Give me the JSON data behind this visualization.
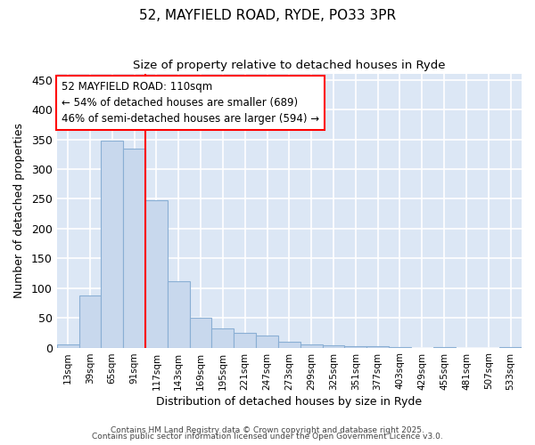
{
  "title1": "52, MAYFIELD ROAD, RYDE, PO33 3PR",
  "title2": "Size of property relative to detached houses in Ryde",
  "xlabel": "Distribution of detached houses by size in Ryde",
  "ylabel": "Number of detached properties",
  "bar_color": "#c8d8ed",
  "bar_edge_color": "#8aafd4",
  "plot_bg_color": "#dce7f5",
  "fig_bg_color": "#ffffff",
  "grid_color": "#ffffff",
  "categories": [
    "13sqm",
    "39sqm",
    "65sqm",
    "91sqm",
    "117sqm",
    "143sqm",
    "169sqm",
    "195sqm",
    "221sqm",
    "247sqm",
    "273sqm",
    "299sqm",
    "325sqm",
    "351sqm",
    "377sqm",
    "403sqm",
    "429sqm",
    "455sqm",
    "481sqm",
    "507sqm",
    "533sqm"
  ],
  "values": [
    5,
    88,
    348,
    335,
    247,
    112,
    50,
    32,
    25,
    20,
    10,
    5,
    4,
    3,
    2,
    1,
    0,
    1,
    0,
    0,
    1
  ],
  "ylim": [
    0,
    460
  ],
  "yticks": [
    0,
    50,
    100,
    150,
    200,
    250,
    300,
    350,
    400,
    450
  ],
  "red_line_index": 4,
  "annotation_line1": "52 MAYFIELD ROAD: 110sqm",
  "annotation_line2": "← 54% of detached houses are smaller (689)",
  "annotation_line3": "46% of semi-detached houses are larger (594) →",
  "footer1": "Contains HM Land Registry data © Crown copyright and database right 2025.",
  "footer2": "Contains public sector information licensed under the Open Government Licence v3.0."
}
